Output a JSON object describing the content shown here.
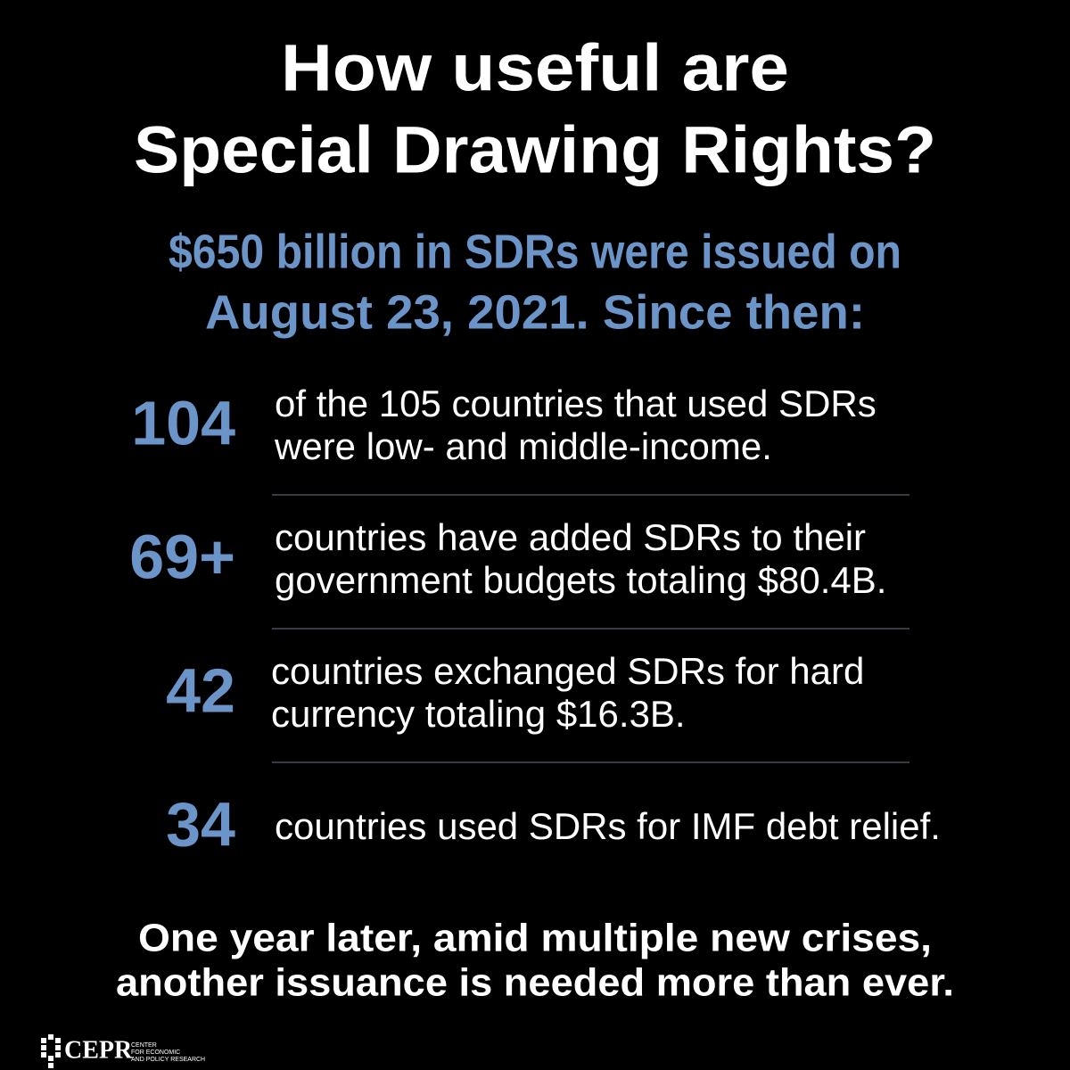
{
  "header": {
    "title": [
      "How useful are",
      "Special Drawing Rights?"
    ],
    "subtitle": [
      "$650 billion in SDRs were issued on",
      "August 23, 2021. Since then:"
    ]
  },
  "stats": [
    {
      "number": "104",
      "text": [
        "of the 105 countries that used SDRs",
        "were low- and middle-income."
      ]
    },
    {
      "number": "69+",
      "text": [
        "countries have added SDRs to their",
        "government budgets totaling $80.4B."
      ]
    },
    {
      "number": "42",
      "text": [
        "countries exchanged SDRs for hard",
        "currency totaling $16.3B."
      ]
    },
    {
      "number": "34",
      "text": [
        "countries used SDRs for IMF debt relief."
      ]
    }
  ],
  "footer": {
    "text": [
      "One year later, amid multiple new crises,",
      "another issuance is needed more than ever."
    ]
  },
  "logo": {
    "name": "CEPR",
    "tagline": [
      "CENTER",
      "FOR ECONOMIC",
      "AND POLICY RESEARCH"
    ]
  }
}
